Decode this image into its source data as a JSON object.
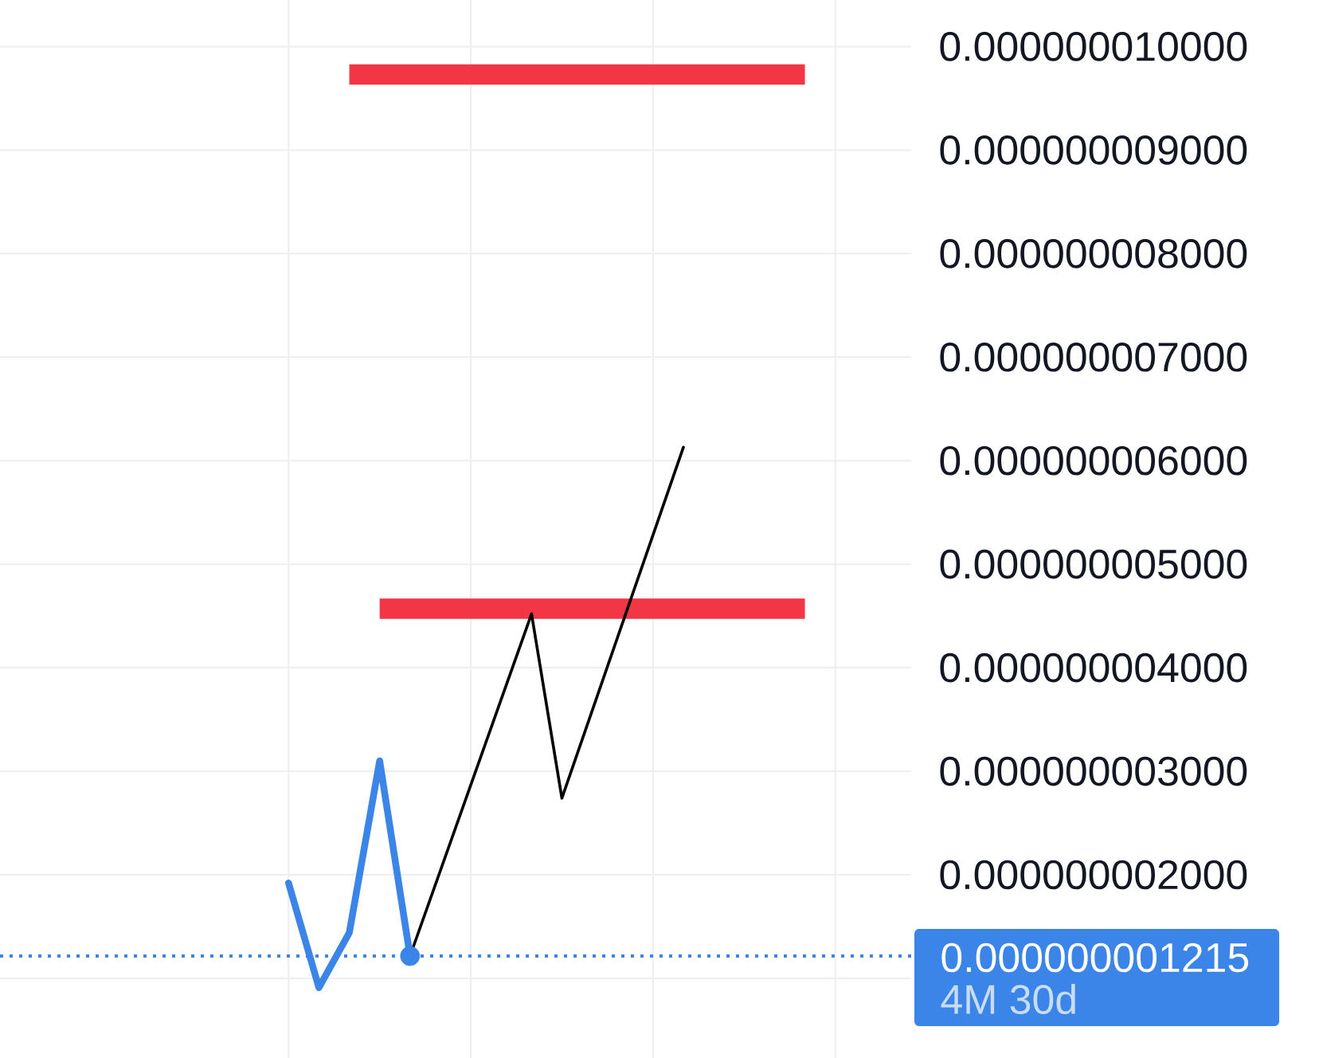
{
  "chart_data": {
    "type": "line",
    "categories": [
      null,
      null,
      null,
      null,
      null,
      null,
      null,
      null,
      null,
      null,
      null,
      null,
      null,
      null,
      null,
      null,
      null,
      null,
      null,
      null,
      null,
      null,
      null,
      null,
      null,
      null,
      null,
      null,
      null,
      null
    ],
    "series": [
      {
        "color": "#f23645",
        "values": [
          null,
          null,
          null,
          null,
          null,
          null,
          null,
          null,
          null,
          null,
          null,
          9.73e-09,
          9.73e-09,
          9.73e-09,
          9.73e-09,
          9.73e-09,
          9.73e-09,
          9.73e-09,
          9.73e-09,
          9.73e-09,
          9.73e-09,
          9.73e-09,
          9.73e-09,
          9.73e-09,
          9.73e-09,
          9.73e-09,
          9.73e-09,
          null,
          null,
          null
        ]
      },
      {
        "color": "#f23645",
        "values": [
          null,
          null,
          null,
          null,
          null,
          null,
          null,
          null,
          null,
          null,
          null,
          null,
          4.57e-09,
          4.57e-09,
          4.57e-09,
          4.57e-09,
          4.57e-09,
          4.57e-09,
          4.57e-09,
          4.57e-09,
          4.57e-09,
          4.57e-09,
          4.57e-09,
          4.57e-09,
          4.57e-09,
          4.57e-09,
          4.57e-09,
          null,
          null,
          null
        ]
      },
      {
        "color": "#3c85e8",
        "values": [
          null,
          null,
          null,
          null,
          null,
          null,
          null,
          null,
          null,
          1.92e-09,
          9.1e-10,
          1.44e-09,
          3.1e-09,
          1.215e-09,
          null,
          null,
          null,
          null,
          null,
          null,
          null,
          null,
          null,
          null,
          null,
          null,
          null,
          null,
          null,
          null
        ]
      },
      {
        "color": "#000000",
        "values": [
          null,
          null,
          null,
          null,
          null,
          null,
          null,
          null,
          null,
          null,
          null,
          null,
          null,
          1.215e-09,
          null,
          null,
          null,
          4.52e-09,
          2.74e-09,
          null,
          null,
          null,
          6.13e-09,
          null,
          null,
          null,
          null,
          null,
          null,
          null
        ]
      },
      {
        "type": "scatter",
        "color": "#3c85e8",
        "values": [
          null,
          null,
          null,
          null,
          null,
          null,
          null,
          null,
          null,
          null,
          null,
          null,
          null,
          1.215e-09,
          null,
          null,
          null,
          null,
          null,
          null,
          null,
          null,
          null,
          null,
          null,
          null,
          null,
          null,
          null,
          null
        ]
      }
    ],
    "ylim": [
      2.3e-10,
      1.045e-08
    ],
    "yticks": [
      {
        "value": 1e-09,
        "label": null
      },
      {
        "value": 2e-09,
        "label": "0.000000002000"
      },
      {
        "value": 3e-09,
        "label": "0.000000003000"
      },
      {
        "value": 4e-09,
        "label": "0.000000004000"
      },
      {
        "value": 5e-09,
        "label": "0.000000005000"
      },
      {
        "value": 6e-09,
        "label": "0.000000006000"
      },
      {
        "value": 7e-09,
        "label": "0.000000007000"
      },
      {
        "value": 8e-09,
        "label": "0.000000008000"
      },
      {
        "value": 9e-09,
        "label": "0.000000009000"
      },
      {
        "value": 1e-08,
        "label": "0.000000010000"
      }
    ],
    "tick_labels": "y",
    "grid": true,
    "ref_lines": [
      {
        "axis": "y",
        "value": 1.215e-09,
        "label": "0.000000001215",
        "color": "#3c85e8",
        "line_style": "dotted"
      }
    ],
    "annotations": [
      "4M 30d"
    ]
  }
}
